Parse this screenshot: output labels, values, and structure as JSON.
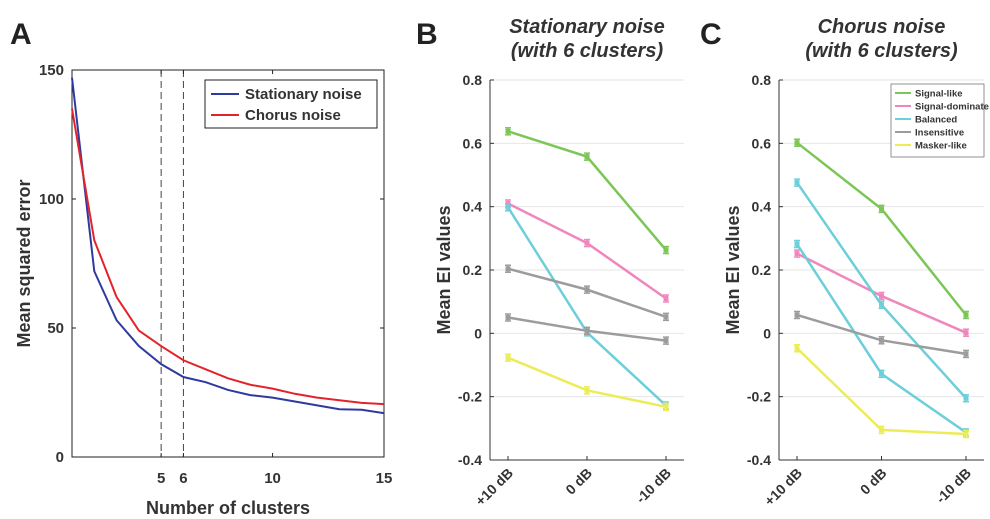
{
  "panels": [
    {
      "letter": "A",
      "chart_data": {
        "type": "line",
        "title": "",
        "xlabel": "Number of clusters",
        "ylabel": "Mean squared error",
        "xlim": [
          1,
          15
        ],
        "ylim": [
          0,
          150
        ],
        "xticks": [
          5,
          6,
          10,
          15
        ],
        "yticks": [
          0,
          50,
          100,
          150
        ],
        "vlines": [
          5,
          6
        ],
        "legend": "top-right",
        "grid": false,
        "x": [
          1,
          2,
          3,
          4,
          5,
          6,
          7,
          8,
          9,
          10,
          11,
          12,
          13,
          14,
          15
        ],
        "series": [
          {
            "name": "Stationary noise",
            "color": "#2e3a9e",
            "values": [
              147,
              72,
              53,
              43,
              36,
              31,
              29,
              26,
              24,
              23,
              21.5,
              20,
              18.5,
              18.3,
              17
            ]
          },
          {
            "name": "Chorus noise",
            "color": "#e3232b",
            "values": [
              135,
              84,
              62,
              49,
              43,
              37.5,
              34,
              30.5,
              28,
              26.5,
              24.5,
              23,
              22,
              21,
              20.5
            ]
          }
        ]
      }
    },
    {
      "letter": "B",
      "chart_data": {
        "type": "line",
        "title": [
          "Stationary noise",
          "(with 6 clusters)"
        ],
        "xlabel": "",
        "ylabel": "Mean EI values",
        "categories": [
          "+10 dB",
          "0 dB",
          "-10 dB"
        ],
        "ylim": [
          -0.4,
          0.8
        ],
        "yticks": [
          "-0.4",
          "-0.2",
          "0",
          "0.2",
          "0.4",
          "0.6",
          "0.8"
        ],
        "grid": true,
        "series": [
          {
            "color": "#7cc657",
            "values": [
              0.638,
              0.558,
              0.263
            ]
          },
          {
            "color": "#ef87bd",
            "values": [
              0.41,
              0.285,
              0.11
            ]
          },
          {
            "color": "#6ccfd9",
            "values": [
              0.398,
              0.003,
              -0.228
            ]
          },
          {
            "color": "#9c9c9c",
            "values": [
              0.204,
              0.138,
              0.052
            ]
          },
          {
            "color": "#9c9c9c",
            "values": [
              0.05,
              0.008,
              -0.023
            ]
          },
          {
            "color": "#ecec58",
            "values": [
              -0.077,
              -0.18,
              -0.232
            ]
          }
        ]
      }
    },
    {
      "letter": "C",
      "chart_data": {
        "type": "line",
        "title": [
          "Chorus noise",
          "(with 6 clusters)"
        ],
        "xlabel": "",
        "ylabel": "Mean EI values",
        "categories": [
          "+10 dB",
          "0 dB",
          "-10 dB"
        ],
        "ylim": [
          -0.4,
          0.8
        ],
        "yticks": [
          "-0.4",
          "-0.2",
          "0",
          "0.2",
          "0.4",
          "0.6",
          "0.8"
        ],
        "grid": true,
        "legend": "top-right",
        "legend_entries": [
          {
            "name": "Signal-like",
            "color": "#7cc657"
          },
          {
            "name": "Signal-dominate",
            "color": "#ef87bd"
          },
          {
            "name": "Balanced",
            "color": "#6ccfd9"
          },
          {
            "name": "Insensitive",
            "color": "#9c9c9c"
          },
          {
            "name": "Masker-like",
            "color": "#ecec58"
          }
        ],
        "series": [
          {
            "color": "#7cc657",
            "values": [
              0.602,
              0.393,
              0.058
            ]
          },
          {
            "color": "#ef87bd",
            "values": [
              0.252,
              0.118,
              0.002
            ]
          },
          {
            "color": "#6ccfd9",
            "values": [
              0.476,
              0.09,
              -0.205
            ]
          },
          {
            "color": "#6ccfd9",
            "values": [
              0.282,
              -0.128,
              -0.313
            ]
          },
          {
            "color": "#9c9c9c",
            "values": [
              0.058,
              -0.022,
              -0.065
            ]
          },
          {
            "color": "#ecec58",
            "values": [
              -0.047,
              -0.305,
              -0.318
            ]
          }
        ]
      }
    }
  ]
}
